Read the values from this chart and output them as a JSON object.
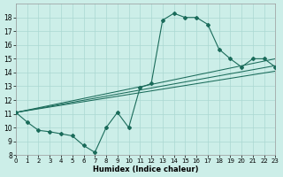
{
  "xlabel": "Humidex (Indice chaleur)",
  "bg_color": "#cceee8",
  "grid_color": "#aad8d2",
  "line_color": "#1a6b5a",
  "xlim": [
    0,
    23
  ],
  "ylim": [
    8,
    19
  ],
  "xticks": [
    0,
    1,
    2,
    3,
    4,
    5,
    6,
    7,
    8,
    9,
    10,
    11,
    12,
    13,
    14,
    15,
    16,
    17,
    18,
    19,
    20,
    21,
    22,
    23
  ],
  "yticks": [
    8,
    9,
    10,
    11,
    12,
    13,
    14,
    15,
    16,
    17,
    18
  ],
  "main_x": [
    0,
    1,
    2,
    3,
    4,
    5,
    6,
    7,
    8,
    9,
    10,
    11,
    12,
    13,
    14,
    15,
    16,
    17,
    18,
    19,
    20,
    21,
    22,
    23
  ],
  "main_y": [
    11.1,
    10.4,
    9.8,
    9.7,
    9.55,
    9.4,
    8.7,
    8.2,
    10.0,
    11.1,
    10.0,
    12.9,
    13.2,
    17.8,
    18.3,
    18.0,
    18.0,
    17.5,
    15.7,
    15.0,
    14.4,
    15.0,
    15.0,
    14.4
  ],
  "reg_lines": [
    [
      0,
      11.1,
      23,
      15.0
    ],
    [
      0,
      11.1,
      23,
      14.5
    ],
    [
      0,
      11.1,
      23,
      14.1
    ]
  ]
}
